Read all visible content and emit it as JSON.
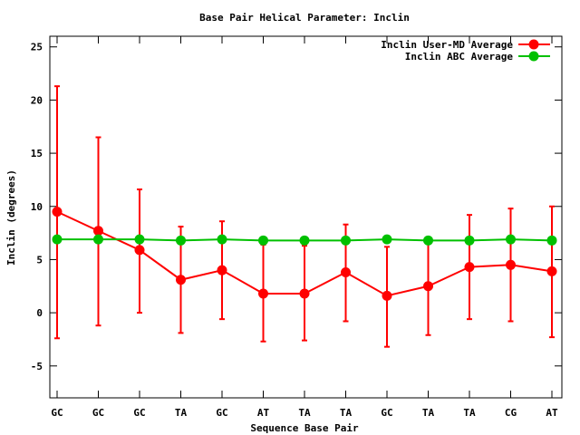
{
  "chart_data": {
    "type": "line",
    "title": "Base Pair Helical Parameter: Inclin",
    "xlabel": "Sequence Base Pair",
    "ylabel": "Inclin (degrees)",
    "categories": [
      "GC",
      "GC",
      "GC",
      "TA",
      "GC",
      "AT",
      "TA",
      "TA",
      "GC",
      "TA",
      "TA",
      "CG",
      "AT"
    ],
    "ylim": [
      -8,
      26
    ],
    "yticks": [
      -5,
      0,
      5,
      10,
      15,
      20,
      25
    ],
    "grid": false,
    "legend_position": "top-right",
    "series": [
      {
        "name": "Inclin User-MD Average",
        "color": "#ff0000",
        "values": [
          9.5,
          7.7,
          5.9,
          3.1,
          4.0,
          1.8,
          1.8,
          3.8,
          1.6,
          2.5,
          4.3,
          4.5,
          3.9
        ],
        "error_low": [
          -2.4,
          -1.2,
          0.0,
          -1.9,
          -0.6,
          -2.7,
          -2.6,
          -0.8,
          -3.2,
          -2.1,
          -0.6,
          -0.8,
          -2.3
        ],
        "error_high": [
          21.3,
          16.5,
          11.6,
          8.1,
          8.6,
          6.4,
          6.3,
          8.3,
          6.2,
          6.6,
          9.2,
          9.8,
          10.0
        ]
      },
      {
        "name": "Inclin ABC Average",
        "color": "#00c000",
        "values": [
          6.9,
          6.9,
          6.9,
          6.8,
          6.9,
          6.8,
          6.8,
          6.8,
          6.9,
          6.8,
          6.8,
          6.9,
          6.8
        ]
      }
    ]
  }
}
